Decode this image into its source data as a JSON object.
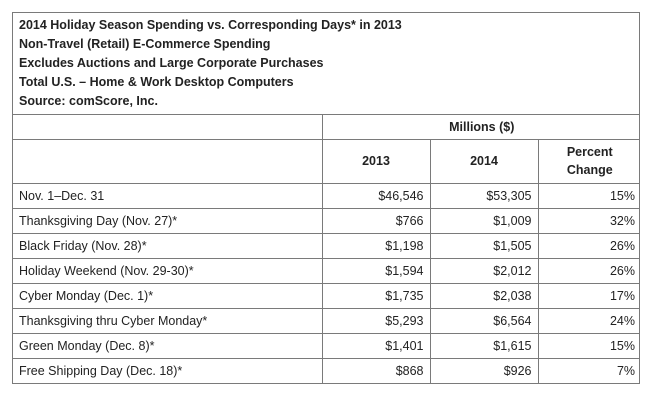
{
  "header": {
    "lines": [
      "2014 Holiday Season Spending vs. Corresponding Days* in 2013",
      "Non-Travel (Retail) E-Commerce Spending",
      "Excludes Auctions and Large Corporate Purchases",
      "Total U.S. – Home & Work Desktop Computers",
      "Source: comScore, Inc."
    ]
  },
  "chart_data": {
    "type": "table",
    "title": "2014 Holiday Season Spending vs. Corresponding Days* in 2013",
    "units_label": "Millions ($)",
    "columns": [
      "2013",
      "2014",
      "Percent",
      "Change"
    ],
    "rows": [
      {
        "label": "Nov. 1–Dec. 31",
        "y2013": "$46,546",
        "y2014": "$53,305",
        "pct": "15%"
      },
      {
        "label": "Thanksgiving Day (Nov. 27)*",
        "y2013": "$766",
        "y2014": "$1,009",
        "pct": "32%"
      },
      {
        "label": "Black Friday (Nov. 28)*",
        "y2013": "$1,198",
        "y2014": "$1,505",
        "pct": "26%"
      },
      {
        "label": "Holiday Weekend (Nov. 29-30)*",
        "y2013": "$1,594",
        "y2014": "$2,012",
        "pct": "26%"
      },
      {
        "label": "Cyber Monday (Dec. 1)*",
        "y2013": "$1,735",
        "y2014": "$2,038",
        "pct": "17%"
      },
      {
        "label": "Thanksgiving thru Cyber Monday*",
        "y2013": "$5,293",
        "y2014": "$6,564",
        "pct": "24%"
      },
      {
        "label": "Green Monday (Dec. 8)*",
        "y2013": "$1,401",
        "y2014": "$1,615",
        "pct": "15%"
      },
      {
        "label": "Free Shipping Day (Dec. 18)*",
        "y2013": "$868",
        "y2014": "$926",
        "pct": "7%"
      }
    ]
  }
}
